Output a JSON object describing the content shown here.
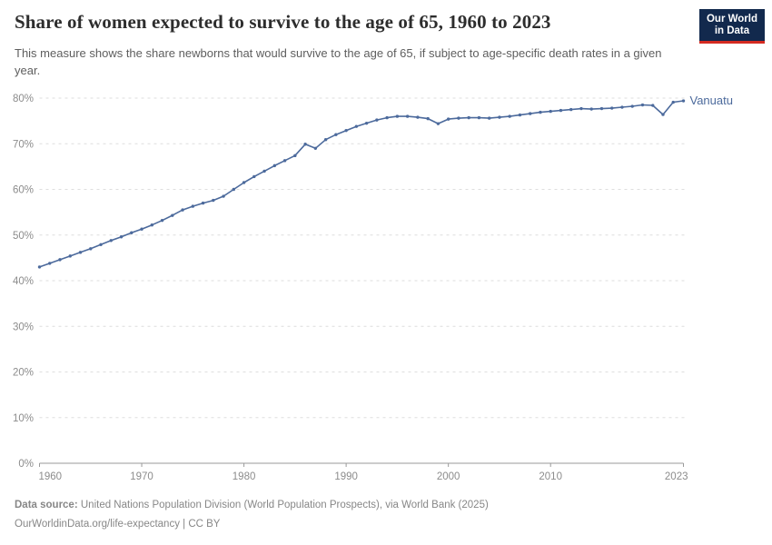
{
  "header": {
    "title": "Share of women expected to survive to the age of 65, 1960 to 2023",
    "subtitle": "This measure shows the share newborns that would survive to the age of 65, if subject to age-specific death rates in a given year.",
    "logo": {
      "line1": "Our World",
      "line2": "in Data"
    }
  },
  "chart_data": {
    "type": "line",
    "title": "Share of women expected to survive to the age of 65, 1960 to 2023",
    "xlabel": "",
    "ylabel": "",
    "xlim": [
      1960,
      2023
    ],
    "ylim": [
      0,
      80
    ],
    "grid": "horizontal-dashed",
    "legend_position": "end-of-line-label",
    "yticks": [
      0,
      10,
      20,
      30,
      40,
      50,
      60,
      70,
      80
    ],
    "ytick_labels": [
      "0%",
      "10%",
      "20%",
      "30%",
      "40%",
      "50%",
      "60%",
      "70%",
      "80%"
    ],
    "xticks": [
      1960,
      1970,
      1980,
      1990,
      2000,
      2010,
      2023
    ],
    "xtick_labels": [
      "1960",
      "1970",
      "1980",
      "1990",
      "2000",
      "2010",
      "2023"
    ],
    "x": [
      1960,
      1961,
      1962,
      1963,
      1964,
      1965,
      1966,
      1967,
      1968,
      1969,
      1970,
      1971,
      1972,
      1973,
      1974,
      1975,
      1976,
      1977,
      1978,
      1979,
      1980,
      1981,
      1982,
      1983,
      1984,
      1985,
      1986,
      1987,
      1988,
      1989,
      1990,
      1991,
      1992,
      1993,
      1994,
      1995,
      1996,
      1997,
      1998,
      1999,
      2000,
      2001,
      2002,
      2003,
      2004,
      2005,
      2006,
      2007,
      2008,
      2009,
      2010,
      2011,
      2012,
      2013,
      2014,
      2015,
      2016,
      2017,
      2018,
      2019,
      2020,
      2021,
      2022,
      2023
    ],
    "series": [
      {
        "name": "Vanuatu",
        "color": "#4c6a9c",
        "values": [
          43.0,
          43.8,
          44.6,
          45.4,
          46.2,
          47.0,
          47.9,
          48.8,
          49.6,
          50.5,
          51.3,
          52.2,
          53.2,
          54.3,
          55.5,
          56.3,
          57.0,
          57.6,
          58.5,
          60.0,
          61.5,
          62.8,
          64.0,
          65.2,
          66.3,
          67.4,
          69.9,
          69.0,
          70.9,
          72.0,
          72.9,
          73.8,
          74.5,
          75.2,
          75.7,
          76.0,
          76.0,
          75.8,
          75.5,
          74.4,
          75.4,
          75.6,
          75.7,
          75.7,
          75.6,
          75.8,
          76.0,
          76.3,
          76.6,
          76.9,
          77.1,
          77.3,
          77.5,
          77.7,
          77.6,
          77.7,
          77.8,
          78.0,
          78.2,
          78.5,
          78.4,
          76.4,
          79.1,
          79.4
        ]
      }
    ]
  },
  "colors": {
    "line": "#4c6a9c",
    "entity_label": "#4c6a9c",
    "grid": "#dedede",
    "axis": "#9a9a9a",
    "tick_text": "#8c8c8c",
    "logo_bg": "#12294d",
    "logo_accent": "#d42b21"
  },
  "footer": {
    "source_label": "Data source:",
    "source_text": " United Nations Population Division (World Population Prospects), via World Bank (2025)",
    "license_line": "OurWorldinData.org/life-expectancy | CC BY"
  }
}
